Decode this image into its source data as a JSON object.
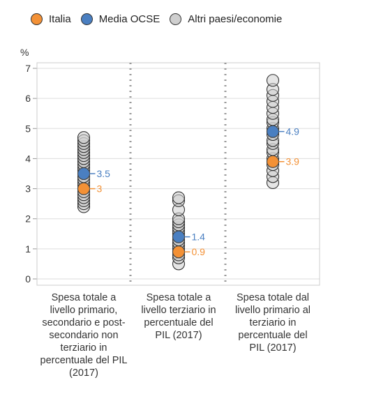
{
  "legend": {
    "items": [
      {
        "label": "Italia",
        "color": "#f39136"
      },
      {
        "label": "Media OCSE",
        "color": "#4a7fc1"
      },
      {
        "label": "Altri paesi/economie",
        "color": "#cfcfcf"
      }
    ]
  },
  "chart_data": {
    "type": "scatter",
    "ylabel": "%",
    "ylim": [
      0,
      7
    ],
    "yticks": [
      "0",
      "1",
      "2",
      "3",
      "4",
      "5",
      "6",
      "7"
    ],
    "grid": true,
    "legend_position": "top-left",
    "categories": [
      "Spesa totale a livello primario, secondario e post-secondario non terziario in percentuale del PIL (2017)",
      "Spesa totale a livello terziario in percentuale del PIL (2017)",
      "Spesa totale dal livello primario al terziario in percentuale del PIL (2017)"
    ],
    "series": [
      {
        "name": "Altri paesi/economie",
        "color": "#cfcfcf",
        "values": [
          [
            2.4,
            2.5,
            2.6,
            2.7,
            2.8,
            2.9,
            3.0,
            3.1,
            3.2,
            3.3,
            3.4,
            3.5,
            3.6,
            3.7,
            3.8,
            3.9,
            4.0,
            4.1,
            4.2,
            4.3,
            4.4,
            4.5,
            4.6,
            4.7
          ],
          [
            0.5,
            0.7,
            0.8,
            0.9,
            1.0,
            1.1,
            1.2,
            1.3,
            1.4,
            1.5,
            1.6,
            1.7,
            1.8,
            1.9,
            2.0,
            2.3,
            2.6,
            2.7
          ],
          [
            3.2,
            3.4,
            3.6,
            3.8,
            3.9,
            4.0,
            4.2,
            4.3,
            4.5,
            4.6,
            4.8,
            4.9,
            5.0,
            5.2,
            5.3,
            5.5,
            5.7,
            5.9,
            6.1,
            6.3,
            6.6
          ]
        ]
      },
      {
        "name": "Media OCSE",
        "color": "#4a7fc1",
        "values": [
          3.5,
          1.4,
          4.9
        ]
      },
      {
        "name": "Italia",
        "color": "#f39136",
        "values": [
          3.0,
          0.9,
          3.9
        ]
      }
    ],
    "data_labels": {
      "Media OCSE": [
        "3.5",
        "1.4",
        "4.9"
      ],
      "Italia": [
        "3",
        "0.9",
        "3.9"
      ]
    }
  }
}
